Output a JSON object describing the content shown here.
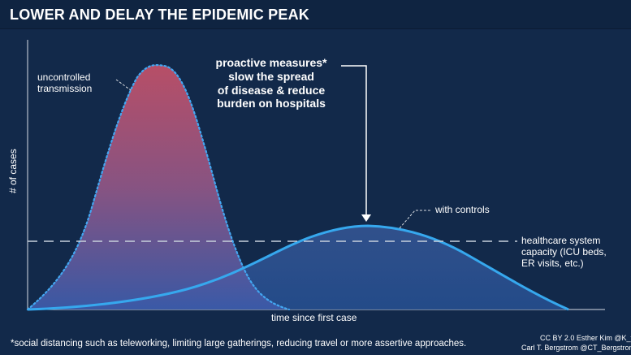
{
  "header": {
    "title": "LOWER AND DELAY THE EPIDEMIC PEAK"
  },
  "chart": {
    "y_label": "# of cases",
    "x_label": "time since first case"
  },
  "annotations": {
    "uncontrolled": "uncontrolled\ntransmission",
    "measures": "proactive measures*\nslow the spread\nof disease & reduce\nburden on hospitals",
    "controls": "with controls",
    "capacity": "healthcare system\ncapacity (ICU beds,\nER visits, etc.)"
  },
  "footer": {
    "note": "*social distancing such as teleworking, limiting large gatherings, reducing travel or more assertive approaches.",
    "credits_line1": "CC BY 2.0  Esther Kim  @K_thos",
    "credits_line2": "Carl T. Bergstrom  @CT_Bergstrom"
  },
  "colors": {
    "background": "#12294a",
    "uncontrolled_top": "#b94d68",
    "uncontrolled_bottom": "#3f5aa5",
    "controls_line": "#36a8ee",
    "dashed_line": "#c7d1dc"
  }
}
